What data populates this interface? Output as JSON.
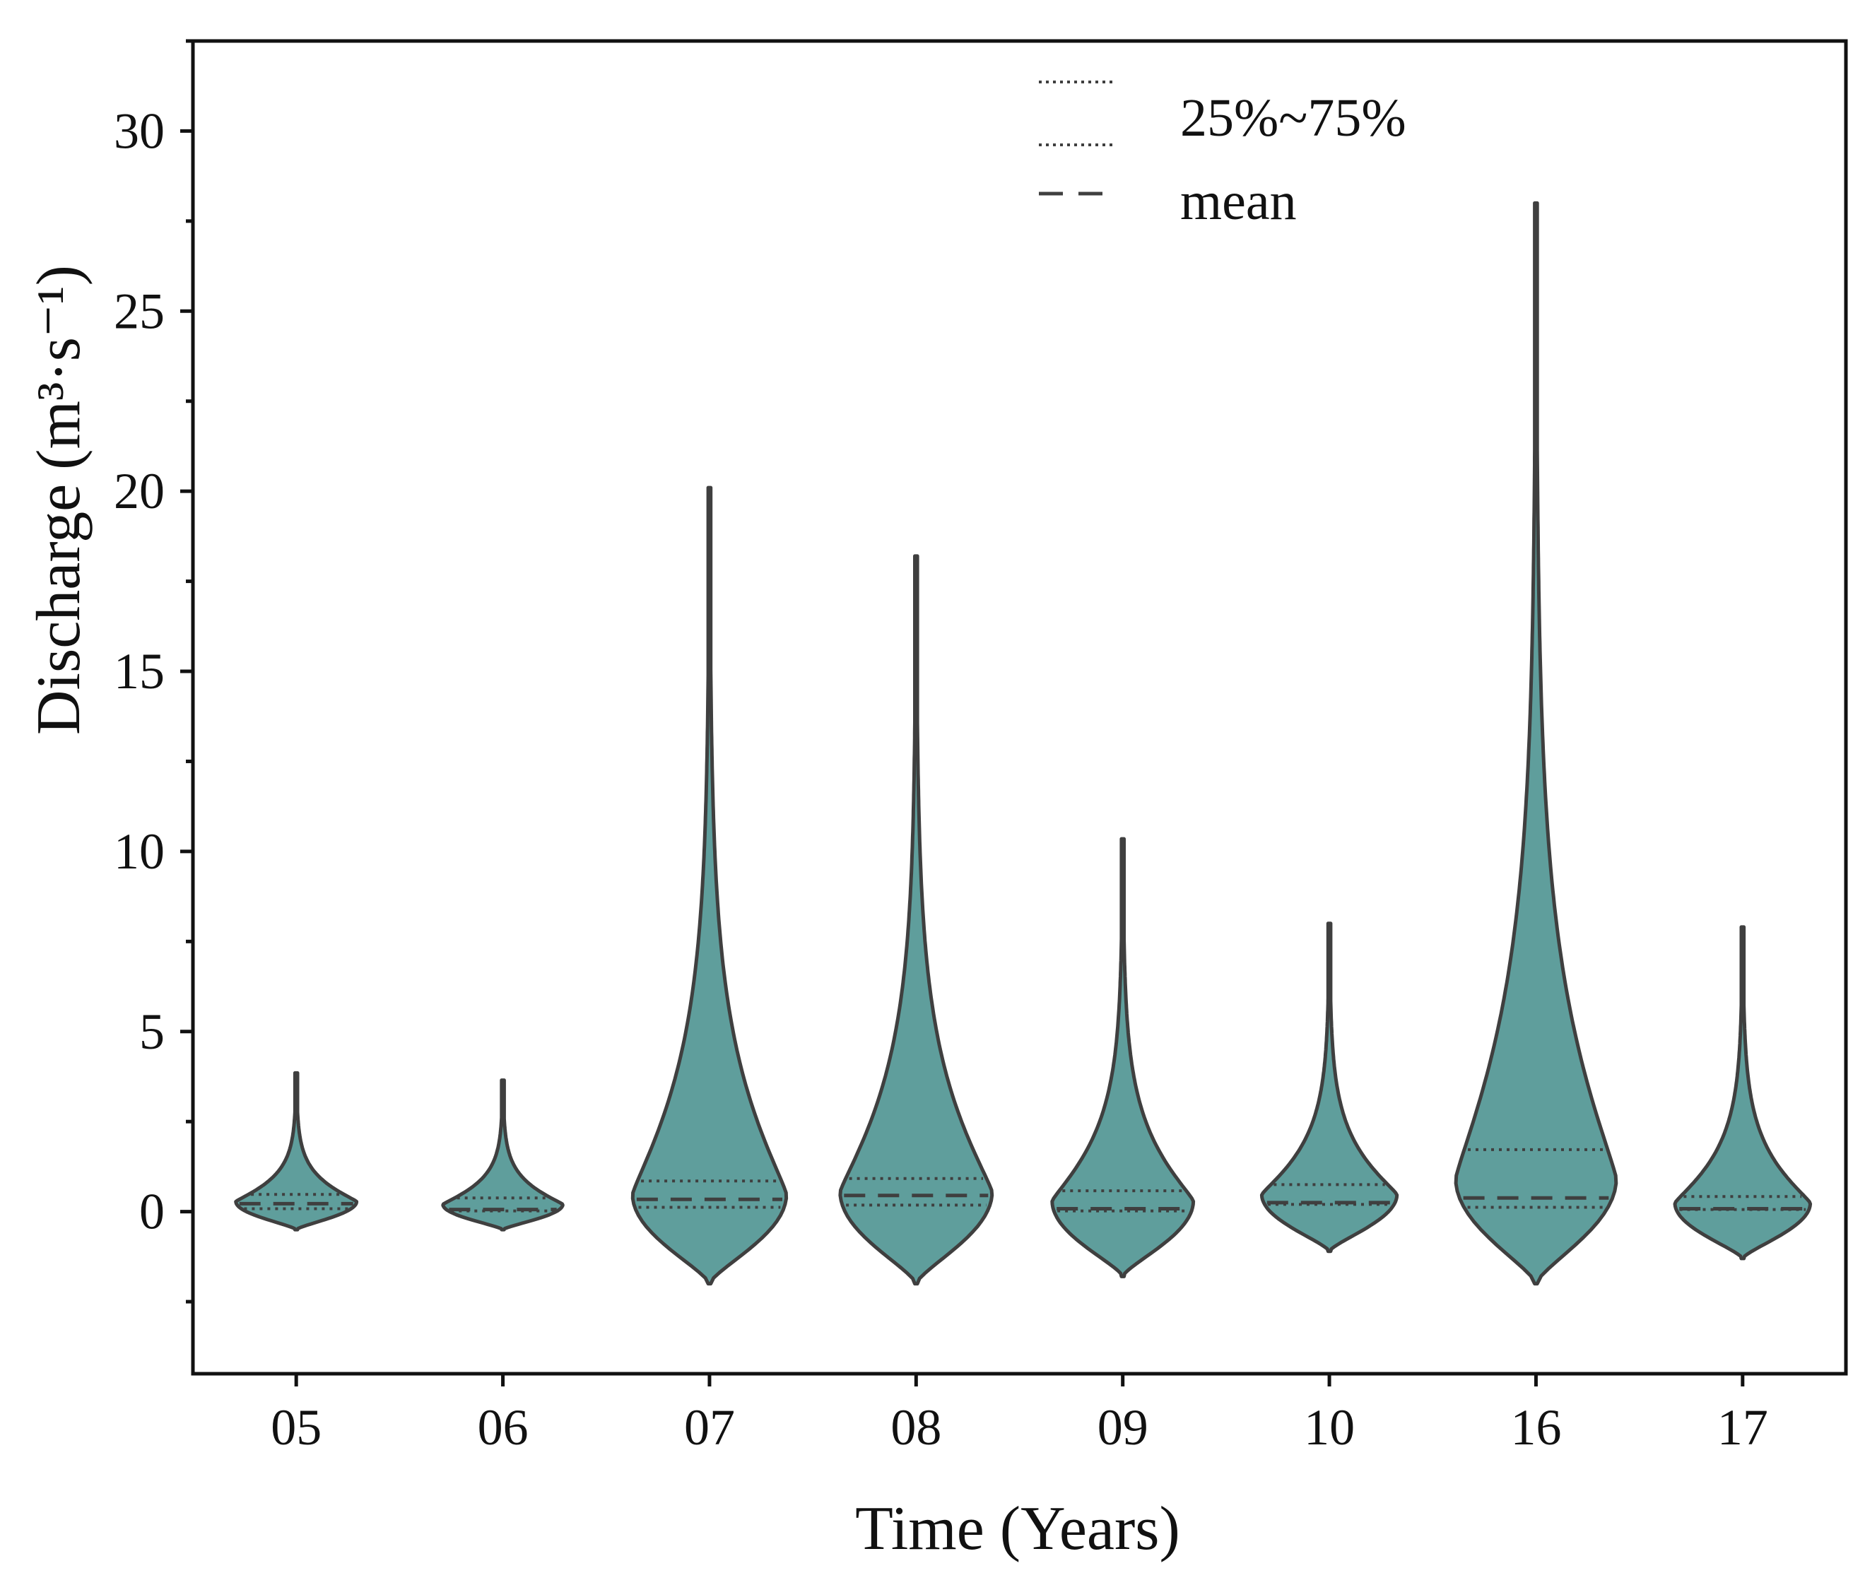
{
  "chart_data": {
    "type": "violin",
    "xlabel": "Time (Years)",
    "ylabel": "Discharge",
    "ylabel_unit": "(m³·s⁻¹)",
    "ylim": [
      -4.5,
      32.5
    ],
    "yticks": [
      0,
      5,
      10,
      15,
      20,
      25,
      30
    ],
    "yminor_step": 2.5,
    "categories": [
      "05",
      "06",
      "07",
      "08",
      "09",
      "10",
      "16",
      "17"
    ],
    "legend": {
      "position": "top-right",
      "entries": [
        {
          "label": "25%~75%",
          "style": "dotted"
        },
        {
          "label": "mean",
          "style": "dashed"
        }
      ]
    },
    "colors": {
      "fill": "#5f9e9c",
      "stroke": "#3f3f3f",
      "axis": "#111111"
    },
    "series": [
      {
        "category": "05",
        "min": -0.5,
        "max": 3.85,
        "q1": 0.08,
        "q3": 0.48,
        "mean": 0.22
      },
      {
        "category": "06",
        "min": -0.5,
        "max": 3.65,
        "q1": 0.02,
        "q3": 0.38,
        "mean": 0.06
      },
      {
        "category": "07",
        "min": -2.0,
        "max": 20.1,
        "q1": 0.12,
        "q3": 0.85,
        "mean": 0.34
      },
      {
        "category": "08",
        "min": -2.0,
        "max": 18.2,
        "q1": 0.18,
        "q3": 0.92,
        "mean": 0.45
      },
      {
        "category": "09",
        "min": -1.8,
        "max": 10.35,
        "q1": 0.02,
        "q3": 0.58,
        "mean": 0.08
      },
      {
        "category": "10",
        "min": -1.1,
        "max": 8.0,
        "q1": 0.2,
        "q3": 0.75,
        "mean": 0.25
      },
      {
        "category": "16",
        "min": -2.0,
        "max": 28.0,
        "q1": 0.12,
        "q3": 1.72,
        "mean": 0.38
      },
      {
        "category": "17",
        "min": -1.3,
        "max": 7.9,
        "q1": 0.06,
        "q3": 0.42,
        "mean": 0.08
      }
    ]
  }
}
